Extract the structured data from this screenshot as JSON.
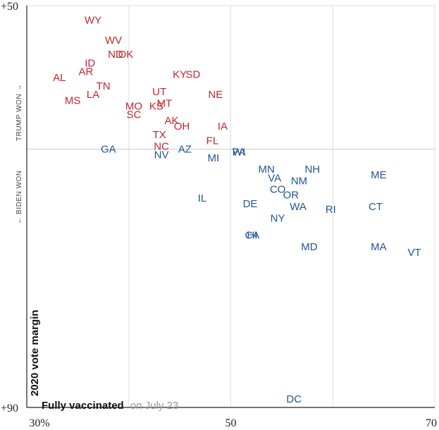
{
  "chart_data": {
    "type": "scatter",
    "xlabel": "Fully vaccinated",
    "xlabel_note": "on July 23",
    "ylabel": "2020 vote margin",
    "y_top_label": "TRUMP WON →",
    "y_bottom_label": "← BIDEN WON",
    "x_ticks": [
      {
        "value": 30,
        "label": "30%"
      },
      {
        "value": 50,
        "label": "50"
      },
      {
        "value": 70,
        "label": "70"
      }
    ],
    "y_ticks": [
      {
        "value": 50,
        "label": "+50"
      },
      {
        "value": -90,
        "label": "+90"
      }
    ],
    "xlim": [
      30,
      70
    ],
    "ylim": [
      -90,
      50
    ],
    "grid": true,
    "colors": {
      "trump": "#c1272d",
      "biden": "#1f5596",
      "grid": "#dddddd",
      "axis": "#222222"
    },
    "series": [
      {
        "name": "Trump won",
        "color": "#c1272d",
        "points": [
          {
            "label": "WY",
            "x": 36.5,
            "y": 45
          },
          {
            "label": "WV",
            "x": 38.5,
            "y": 38
          },
          {
            "label": "ND",
            "x": 38.7,
            "y": 33
          },
          {
            "label": "OK",
            "x": 39.7,
            "y": 33
          },
          {
            "label": "ID",
            "x": 36.2,
            "y": 30
          },
          {
            "label": "AR",
            "x": 35.8,
            "y": 27
          },
          {
            "label": "AL",
            "x": 33.2,
            "y": 25
          },
          {
            "label": "TN",
            "x": 37.5,
            "y": 22
          },
          {
            "label": "KY",
            "x": 45,
            "y": 26
          },
          {
            "label": "SD",
            "x": 46.3,
            "y": 26
          },
          {
            "label": "LA",
            "x": 36.5,
            "y": 19
          },
          {
            "label": "MS",
            "x": 34.5,
            "y": 17
          },
          {
            "label": "UT",
            "x": 43,
            "y": 20
          },
          {
            "label": "NE",
            "x": 48.5,
            "y": 19
          },
          {
            "label": "MO",
            "x": 40.5,
            "y": 15
          },
          {
            "label": "KS",
            "x": 42.7,
            "y": 15
          },
          {
            "label": "MT",
            "x": 43.5,
            "y": 16
          },
          {
            "label": "SC",
            "x": 40.5,
            "y": 12
          },
          {
            "label": "AK",
            "x": 44.2,
            "y": 10
          },
          {
            "label": "OH",
            "x": 45.2,
            "y": 8
          },
          {
            "label": "IA",
            "x": 49.2,
            "y": 8
          },
          {
            "label": "TX",
            "x": 43,
            "y": 5
          },
          {
            "label": "FL",
            "x": 48.2,
            "y": 3
          },
          {
            "label": "NC",
            "x": 43.2,
            "y": 1
          }
        ]
      },
      {
        "name": "Biden won",
        "color": "#1f5596",
        "points": [
          {
            "label": "GA",
            "x": 38,
            "y": 0
          },
          {
            "label": "AZ",
            "x": 45.5,
            "y": 0
          },
          {
            "label": "NV",
            "x": 43.2,
            "y": -2
          },
          {
            "label": "MI",
            "x": 48.3,
            "y": -3
          },
          {
            "label": "WI",
            "x": 50.8,
            "y": -1
          },
          {
            "label": "PA",
            "x": 50.8,
            "y": -1
          },
          {
            "label": "MN",
            "x": 53.5,
            "y": -7
          },
          {
            "label": "NH",
            "x": 58,
            "y": -7
          },
          {
            "label": "ME",
            "x": 64.5,
            "y": -9
          },
          {
            "label": "VA",
            "x": 54.3,
            "y": -10
          },
          {
            "label": "NM",
            "x": 56.7,
            "y": -11
          },
          {
            "label": "CO",
            "x": 54.6,
            "y": -14
          },
          {
            "label": "OR",
            "x": 55.9,
            "y": -16
          },
          {
            "label": "IL",
            "x": 47.2,
            "y": -17
          },
          {
            "label": "DE",
            "x": 51.9,
            "y": -19
          },
          {
            "label": "WA",
            "x": 56.6,
            "y": -20
          },
          {
            "label": "RI",
            "x": 59.8,
            "y": -21
          },
          {
            "label": "CT",
            "x": 64.2,
            "y": -20
          },
          {
            "label": "NY",
            "x": 54.6,
            "y": -24
          },
          {
            "label": "CA",
            "x": 52.1,
            "y": -30
          },
          {
            "label": "HI",
            "x": 52.1,
            "y": -30
          },
          {
            "label": "MD",
            "x": 57.7,
            "y": -34
          },
          {
            "label": "MA",
            "x": 64.5,
            "y": -34
          },
          {
            "label": "VT",
            "x": 68,
            "y": -36
          },
          {
            "label": "DC",
            "x": 56.2,
            "y": -87
          }
        ]
      }
    ]
  }
}
